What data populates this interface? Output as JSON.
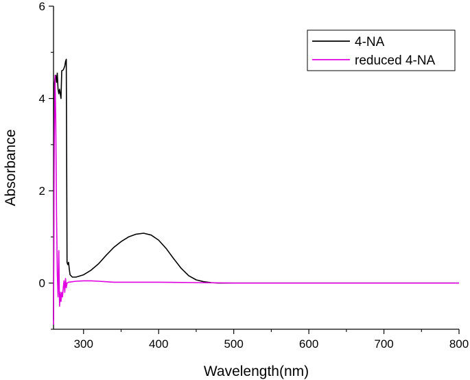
{
  "chart_data": {
    "type": "line",
    "title": "",
    "xlabel": "Wavelength(nm)",
    "ylabel": "Absorbance",
    "xlim": [
      260,
      800
    ],
    "ylim": [
      -1,
      6
    ],
    "xticks": [
      300,
      400,
      500,
      600,
      700,
      800
    ],
    "xtick_labels": [
      "300",
      "400",
      "500",
      "600",
      "700",
      "800"
    ],
    "yticks": [
      0,
      2,
      4,
      6
    ],
    "ytick_labels": [
      "0",
      "2",
      "4",
      "6"
    ],
    "grid": false,
    "legend_position": "top-right",
    "series": [
      {
        "name": "4-NA",
        "color": "#000000",
        "points": [
          [
            260,
            -0.8
          ],
          [
            261,
            4.3
          ],
          [
            262,
            4.45
          ],
          [
            263,
            4.5
          ],
          [
            264,
            4.35
          ],
          [
            265,
            4.55
          ],
          [
            266,
            4.2
          ],
          [
            267,
            4.1
          ],
          [
            268,
            4.2
          ],
          [
            269,
            4.1
          ],
          [
            270,
            4.0
          ],
          [
            271,
            4.6
          ],
          [
            273,
            4.62
          ],
          [
            275,
            4.7
          ],
          [
            276,
            4.8
          ],
          [
            277,
            4.85
          ],
          [
            278,
            0.45
          ],
          [
            279,
            0.4
          ],
          [
            280,
            0.45
          ],
          [
            281,
            0.3
          ],
          [
            282,
            0.18
          ],
          [
            285,
            0.13
          ],
          [
            290,
            0.13
          ],
          [
            300,
            0.18
          ],
          [
            310,
            0.28
          ],
          [
            320,
            0.42
          ],
          [
            330,
            0.6
          ],
          [
            340,
            0.77
          ],
          [
            350,
            0.9
          ],
          [
            360,
            1.0
          ],
          [
            370,
            1.06
          ],
          [
            380,
            1.08
          ],
          [
            390,
            1.04
          ],
          [
            400,
            0.93
          ],
          [
            410,
            0.75
          ],
          [
            420,
            0.53
          ],
          [
            430,
            0.32
          ],
          [
            440,
            0.16
          ],
          [
            450,
            0.07
          ],
          [
            460,
            0.03
          ],
          [
            470,
            0.01
          ],
          [
            480,
            0.0
          ],
          [
            500,
            0.0
          ],
          [
            600,
            0.0
          ],
          [
            700,
            0.0
          ],
          [
            800,
            0.0
          ]
        ]
      },
      {
        "name": "reduced 4-NA",
        "color": "#e000e0",
        "points": [
          [
            260,
            -0.9
          ],
          [
            261,
            3.0
          ],
          [
            262,
            4.5
          ],
          [
            263,
            3.5
          ],
          [
            264,
            1.5
          ],
          [
            265,
            0.2
          ],
          [
            266,
            -0.3
          ],
          [
            267,
            0.7
          ],
          [
            268,
            -0.5
          ],
          [
            269,
            -0.2
          ],
          [
            270,
            -0.4
          ],
          [
            271,
            -0.2
          ],
          [
            272,
            -0.3
          ],
          [
            273,
            -0.1
          ],
          [
            274,
            0.05
          ],
          [
            275,
            -0.2
          ],
          [
            276,
            0.1
          ],
          [
            277,
            -0.1
          ],
          [
            278,
            0.0
          ],
          [
            280,
            0.02
          ],
          [
            285,
            0.03
          ],
          [
            290,
            0.04
          ],
          [
            300,
            0.05
          ],
          [
            310,
            0.05
          ],
          [
            320,
            0.04
          ],
          [
            330,
            0.03
          ],
          [
            340,
            0.02
          ],
          [
            360,
            0.02
          ],
          [
            400,
            0.02
          ],
          [
            450,
            0.01
          ],
          [
            500,
            0.0
          ],
          [
            600,
            0.0
          ],
          [
            700,
            0.0
          ],
          [
            800,
            0.0
          ]
        ]
      }
    ]
  }
}
